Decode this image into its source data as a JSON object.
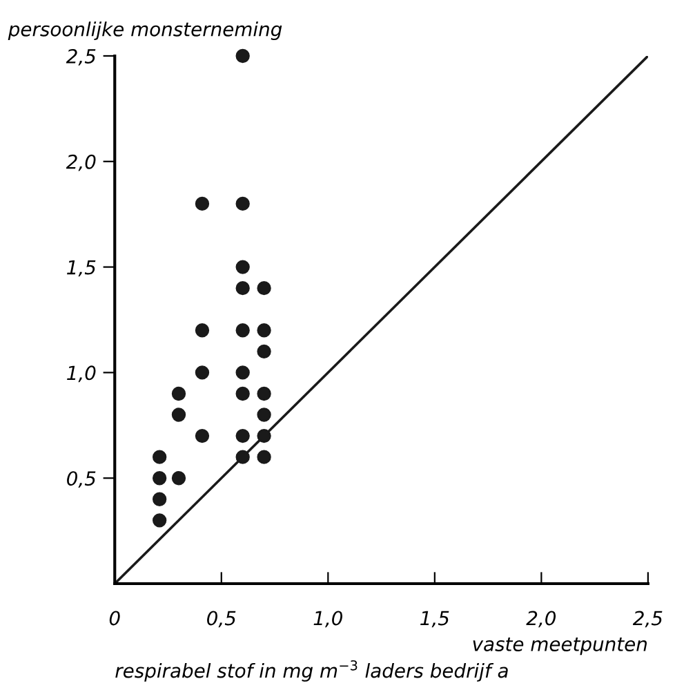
{
  "chart_data": {
    "type": "scatter",
    "ylabel": "persoonlijke monsterneming",
    "xlabel": "vaste meetpunten",
    "annotations": [
      "respirabel stof in mg m$^{−3}$ laders bedrijf a"
    ],
    "series": [
      {
        "marker": "circle",
        "color": "#1a1a1a",
        "x": [
          0.21,
          0.21,
          0.21,
          0.21,
          0.3,
          0.3,
          0.3,
          0.41,
          0.41,
          0.41,
          0.41,
          0.6,
          0.6,
          0.6,
          0.6,
          0.6,
          0.6,
          0.6,
          0.6,
          0.6,
          0.7,
          0.7,
          0.7,
          0.7,
          0.7,
          0.7,
          0.7
        ],
        "values": [
          0.6,
          0.5,
          0.4,
          0.3,
          0.9,
          0.8,
          0.5,
          1.8,
          1.2,
          1.0,
          0.7,
          2.5,
          1.8,
          1.5,
          1.4,
          1.2,
          1.0,
          0.9,
          0.7,
          0.6,
          1.4,
          1.2,
          1.1,
          0.9,
          0.8,
          0.7,
          0.6
        ]
      },
      {
        "type": "line",
        "marker": "none",
        "color": "#1a1a1a",
        "x": [
          0,
          2.5
        ],
        "values": [
          0,
          2.5
        ]
      }
    ],
    "xlim": [
      0,
      2.5
    ],
    "ylim": [
      0,
      2.5
    ],
    "xticks": [
      {
        "value": 0,
        "label": "0"
      },
      {
        "value": 0.5,
        "label": "0,5"
      },
      {
        "value": 1.0,
        "label": "1,0"
      },
      {
        "value": 1.5,
        "label": "1,5"
      },
      {
        "value": 2.0,
        "label": "2,0"
      },
      {
        "value": 2.5,
        "label": "2,5"
      }
    ],
    "yticks": [
      {
        "value": 0.5,
        "label": "0,5"
      },
      {
        "value": 1.0,
        "label": "1,0"
      },
      {
        "value": 1.5,
        "label": "1,5"
      },
      {
        "value": 2.0,
        "label": "2,0"
      },
      {
        "value": 2.5,
        "label": "2,5"
      }
    ],
    "grid": false,
    "legend": false
  }
}
